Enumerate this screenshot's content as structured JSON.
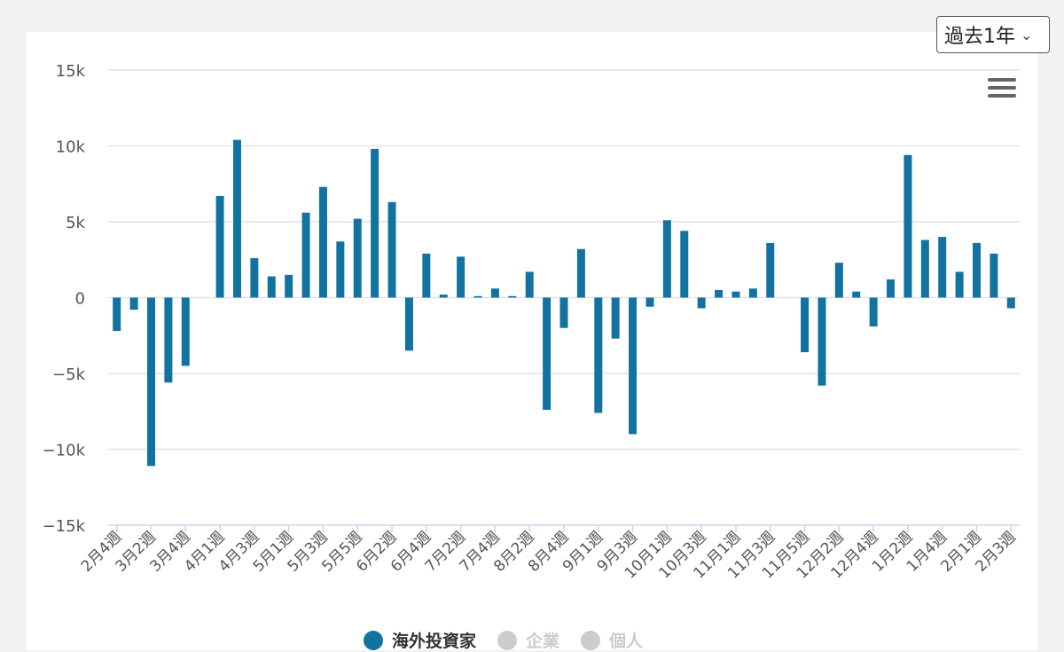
{
  "controls": {
    "period_label": "過去1年",
    "chevron_icon": "chevron-down-icon",
    "menu_icon": "hamburger-menu-icon"
  },
  "colors": {
    "series": "#1273a1",
    "inactive": "#cccccc",
    "grid": "#e2e2e2",
    "axis": "#c8d6e8"
  },
  "legend": [
    {
      "label": "海外投資家",
      "active": true
    },
    {
      "label": "企業",
      "active": false
    },
    {
      "label": "個人",
      "active": false
    }
  ],
  "chart_data": {
    "type": "bar",
    "ylim": [
      -15000,
      15000
    ],
    "yticks": [
      15000,
      10000,
      5000,
      0,
      -5000,
      -10000,
      -15000
    ],
    "ytick_labels": [
      "15k",
      "10k",
      "5k",
      "0",
      "−5k",
      "−10k",
      "−15k"
    ],
    "x_labels": [
      "2月4週",
      "3月2週",
      "3月4週",
      "4月1週",
      "4月3週",
      "5月1週",
      "5月3週",
      "5月5週",
      "6月2週",
      "6月4週",
      "7月2週",
      "7月4週",
      "8月2週",
      "8月4週",
      "9月1週",
      "9月3週",
      "10月1週",
      "10月3週",
      "11月1週",
      "11月3週",
      "11月5週",
      "12月2週",
      "12月4週",
      "1月2週",
      "1月4週",
      "2月1週",
      "2月3週"
    ],
    "series": [
      {
        "name": "海外投資家",
        "values": [
          -2200,
          -800,
          -11100,
          -5600,
          -4500,
          0,
          6700,
          10400,
          2600,
          1400,
          1500,
          5600,
          7300,
          3700,
          5200,
          9800,
          6300,
          -3500,
          2900,
          200,
          2700,
          100,
          600,
          100,
          1700,
          -7400,
          -2000,
          3200,
          -7600,
          -2700,
          -9000,
          -600,
          5100,
          4400,
          -700,
          500,
          400,
          600,
          3600,
          0,
          -3600,
          -5800,
          2300,
          400,
          -1900,
          1200,
          9400,
          3800,
          4000,
          1700,
          3600,
          2900,
          -700
        ]
      }
    ]
  }
}
